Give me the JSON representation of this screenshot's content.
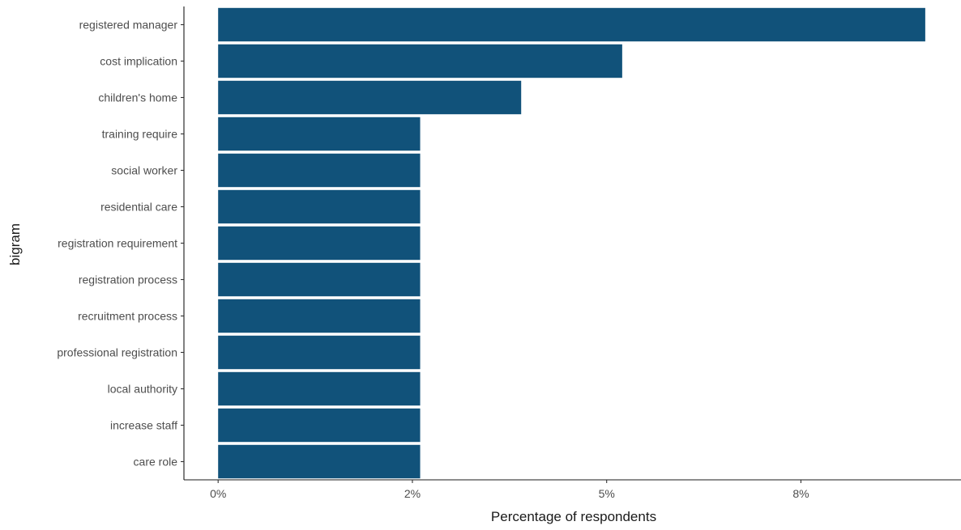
{
  "chart_data": {
    "type": "bar",
    "orientation": "horizontal",
    "categories": [
      "registered manager",
      "cost implication",
      "children's home",
      "training require",
      "social worker",
      "residential care",
      "registration requirement",
      "registration process",
      "recruitment process",
      "professional registration",
      "local authority",
      "increase staff",
      "care role"
    ],
    "values": [
      9.1,
      5.2,
      3.9,
      2.6,
      2.6,
      2.6,
      2.6,
      2.6,
      2.6,
      2.6,
      2.6,
      2.6,
      2.6
    ],
    "xlabel": "Percentage of respondents",
    "ylabel": "bigram",
    "x_ticks": [
      0,
      2.5,
      5,
      7.5
    ],
    "x_tick_labels": [
      "0%",
      "2%",
      "5%",
      "8%"
    ],
    "xlim": [
      -0.44,
      9.56
    ],
    "bar_color": "#11527a",
    "grid": false,
    "legend": "none"
  }
}
